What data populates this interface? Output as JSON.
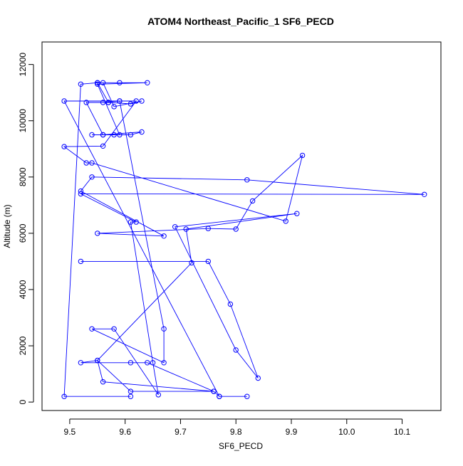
{
  "chart_data": {
    "type": "line",
    "title": "ATOM4 Northeast_Pacific_1 SF6_PECD",
    "xlabel": "SF6_PECD",
    "ylabel": "Altitude (m)",
    "xlim": [
      9.45,
      10.17
    ],
    "ylim": [
      -300,
      12800
    ],
    "xticks": [
      9.5,
      9.6,
      9.7,
      9.8,
      9.9,
      10.0,
      10.1
    ],
    "xtick_labels": [
      "9.5",
      "9.6",
      "9.7",
      "9.8",
      "9.9",
      "10.0",
      "10.1"
    ],
    "yticks": [
      0,
      2000,
      4000,
      6000,
      8000,
      10000,
      12000
    ],
    "ytick_labels": [
      "0",
      "2000",
      "4000",
      "6000",
      "8000",
      "10000",
      "12000"
    ],
    "grid": false,
    "series": [
      {
        "color": "#0000ff",
        "marker": "open-circle",
        "x": [
          9.61,
          9.49,
          9.52,
          9.55,
          9.56,
          9.58,
          9.63,
          9.61,
          9.57,
          9.55,
          9.59,
          9.64,
          9.55,
          9.59,
          9.54,
          9.61,
          9.63,
          9.56,
          9.58,
          9.56,
          9.53,
          9.57,
          9.56,
          9.59,
          9.62,
          9.56,
          9.49,
          9.53,
          9.54,
          9.89,
          9.92,
          9.83,
          9.8,
          9.75,
          9.55,
          9.67,
          9.52,
          9.54,
          9.82,
          10.14,
          9.52,
          9.62,
          9.61,
          9.65,
          9.66,
          9.58,
          9.54,
          9.67,
          9.67,
          9.59,
          9.49,
          9.77,
          9.82,
          9.77,
          9.76,
          9.61,
          9.55,
          9.56,
          9.76,
          9.64,
          9.61,
          9.52,
          9.55,
          9.72,
          9.71,
          9.91,
          9.69,
          9.8,
          9.84,
          9.79,
          9.75,
          9.52
        ],
        "y": [
          200,
          200,
          11300,
          11350,
          11350,
          10500,
          10700,
          10600,
          10650,
          11350,
          11350,
          11350,
          11300,
          9500,
          9500,
          9500,
          9600,
          9500,
          9500,
          9500,
          10650,
          10650,
          10650,
          10700,
          10700,
          9100,
          9080,
          8500,
          8500,
          6430,
          8770,
          7150,
          6150,
          6170,
          6000,
          5900,
          7500,
          8000,
          7900,
          7380,
          7400,
          6400,
          6400,
          1400,
          260,
          2600,
          2600,
          1400,
          2600,
          10700,
          10700,
          200,
          200,
          200,
          380,
          380,
          1480,
          720,
          380,
          1400,
          1400,
          1400,
          1480,
          4950,
          6150,
          6700,
          6230,
          1850,
          850,
          3480,
          5000,
          5000
        ]
      }
    ]
  }
}
